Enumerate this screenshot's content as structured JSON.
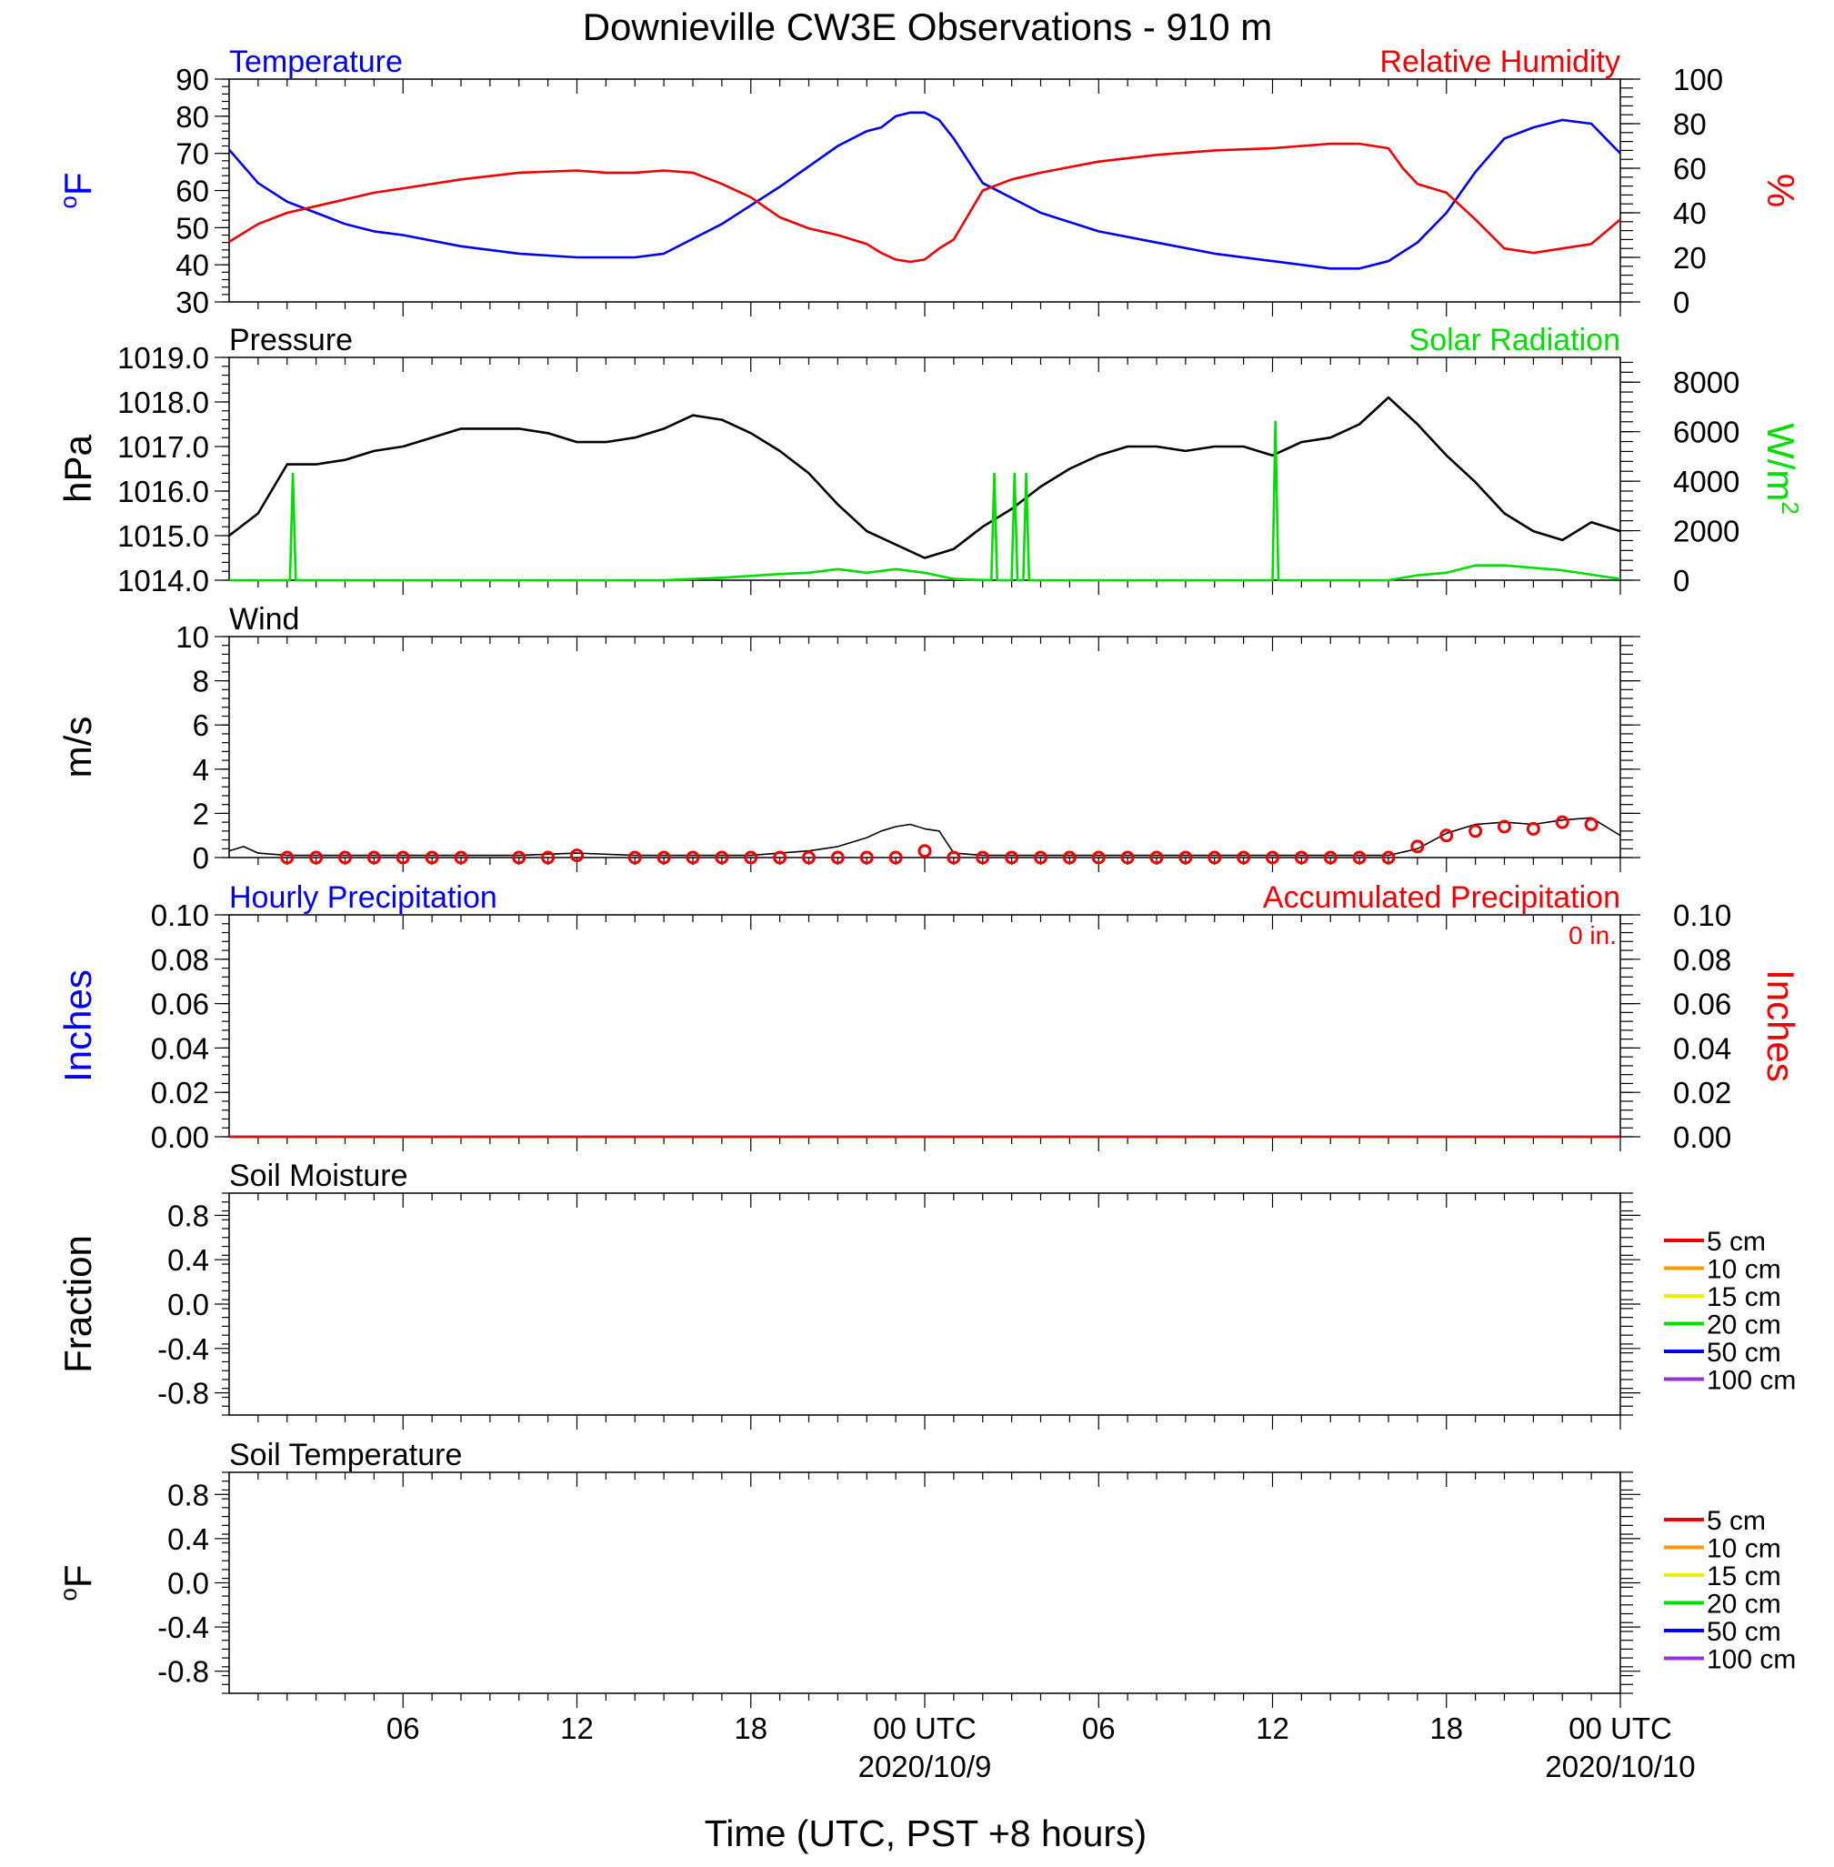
{
  "title": "Downieville CW3E Observations - 910 m",
  "x_axis": {
    "label": "Time (UTC, PST +8 hours)",
    "range_hours": [
      0,
      48
    ],
    "tick_hours": [
      6,
      12,
      18,
      24,
      30,
      36,
      42,
      48
    ],
    "tick_labels": [
      "06",
      "12",
      "18",
      "00 UTC",
      "06",
      "12",
      "18",
      "00 UTC"
    ],
    "date_labels": [
      {
        "hour": 24,
        "text": "2020/10/9"
      },
      {
        "hour": 48,
        "text": "2020/10/10"
      }
    ],
    "minor_step_hours": 1
  },
  "colors": {
    "blue": "#0000ee",
    "red": "#ee0000",
    "green": "#00dd00",
    "black": "#000000"
  },
  "chart_data": [
    {
      "id": "temp_rh",
      "type": "line",
      "left_title": "Temperature",
      "right_title": "Relative Humidity",
      "left_ylabel": "oF",
      "right_ylabel": "%",
      "left_ylim": [
        30,
        90
      ],
      "left_ticks": [
        30,
        40,
        50,
        60,
        70,
        80,
        90
      ],
      "right_ylim": [
        0,
        100
      ],
      "right_ticks": [
        0,
        20,
        40,
        60,
        80,
        100
      ],
      "series": [
        {
          "name": "Temperature",
          "axis": "left",
          "color": "#0000ee",
          "x": [
            0,
            1,
            2,
            3,
            4,
            5,
            6,
            8,
            10,
            12,
            13,
            14,
            15,
            17,
            19,
            21,
            22,
            22.5,
            23,
            23.5,
            24,
            24.5,
            25,
            26,
            28,
            30,
            32,
            34,
            36,
            38,
            38.5,
            39,
            40,
            41,
            42,
            43,
            44,
            45,
            46,
            47,
            48
          ],
          "y": [
            71,
            62,
            57,
            54,
            51,
            49,
            48,
            45,
            43,
            42,
            42,
            42,
            43,
            51,
            61,
            72,
            76,
            77,
            80,
            81,
            81,
            79,
            74,
            62,
            54,
            49,
            46,
            43,
            41,
            39,
            39,
            39,
            41,
            46,
            54,
            65,
            74,
            77,
            79,
            78,
            70
          ]
        },
        {
          "name": "Relative Humidity",
          "axis": "right",
          "color": "#ee0000",
          "x": [
            0,
            1,
            2,
            3,
            4,
            5,
            6,
            8,
            10,
            12,
            13,
            14,
            15,
            16,
            17,
            18,
            19,
            20,
            21,
            22,
            22.5,
            23,
            23.5,
            24,
            24.5,
            25,
            26,
            27,
            28,
            30,
            32,
            34,
            36,
            38,
            39,
            40,
            40.5,
            41,
            42,
            43,
            44,
            45,
            46,
            47,
            48
          ],
          "y": [
            27,
            35,
            40,
            43,
            46,
            49,
            51,
            55,
            58,
            59,
            58,
            58,
            59,
            58,
            53,
            47,
            38,
            33,
            30,
            26,
            22,
            19,
            18,
            19,
            24,
            28,
            50,
            55,
            58,
            63,
            66,
            68,
            69,
            71,
            71,
            69,
            60,
            53,
            49,
            37,
            24,
            22,
            24,
            26,
            37
          ]
        }
      ]
    },
    {
      "id": "pressure_solar",
      "type": "line",
      "left_title": "Pressure",
      "right_title": "Solar Radiation",
      "left_ylabel": "hPa",
      "right_ylabel": "W/m2",
      "left_ylim": [
        1014,
        1019
      ],
      "left_ticks": [
        1014,
        1015,
        1016,
        1017,
        1018,
        1019
      ],
      "left_tick_labels": [
        "1014.0",
        "1015.0",
        "1016.0",
        "1017.0",
        "1018.0",
        "1019.0"
      ],
      "right_ylim": [
        0,
        9000
      ],
      "right_ticks": [
        0,
        2000,
        4000,
        6000,
        8000
      ],
      "series": [
        {
          "name": "Pressure",
          "axis": "left",
          "color": "#000000",
          "x": [
            0,
            1,
            2,
            3,
            4,
            5,
            6,
            7,
            8,
            9,
            10,
            11,
            12,
            13,
            14,
            15,
            16,
            17,
            18,
            19,
            20,
            21,
            22,
            23,
            24,
            25,
            26,
            27,
            28,
            29,
            30,
            31,
            32,
            33,
            34,
            35,
            36,
            37,
            38,
            39,
            40,
            41,
            42,
            43,
            44,
            45,
            46,
            47,
            48
          ],
          "y": [
            1015.0,
            1015.5,
            1016.6,
            1016.6,
            1016.7,
            1016.9,
            1017.0,
            1017.2,
            1017.4,
            1017.4,
            1017.4,
            1017.3,
            1017.1,
            1017.1,
            1017.2,
            1017.4,
            1017.7,
            1017.6,
            1017.3,
            1016.9,
            1016.4,
            1015.7,
            1015.1,
            1014.8,
            1014.5,
            1014.7,
            1015.2,
            1015.6,
            1016.1,
            1016.5,
            1016.8,
            1017.0,
            1017.0,
            1016.9,
            1017.0,
            1017.0,
            1016.8,
            1017.1,
            1017.2,
            1017.5,
            1018.1,
            1017.5,
            1016.8,
            1016.2,
            1015.5,
            1015.1,
            1014.9,
            1015.3,
            1015.1
          ]
        },
        {
          "name": "Solar Radiation",
          "axis": "right",
          "color": "#00dd00",
          "x": [
            0,
            2.1,
            2.2,
            2.3,
            15,
            17,
            19,
            20,
            21,
            22,
            23,
            24,
            25,
            26.3,
            26.4,
            26.5,
            27,
            27.1,
            27.2,
            27.4,
            27.5,
            27.6,
            27.7,
            28,
            36,
            36.1,
            36.2,
            36.3,
            38,
            40,
            41,
            42,
            43,
            44,
            46,
            48
          ],
          "y": [
            0,
            0,
            4300,
            0,
            0,
            100,
            250,
            300,
            450,
            300,
            450,
            300,
            50,
            0,
            4300,
            0,
            0,
            4300,
            0,
            0,
            4300,
            0,
            0,
            0,
            0,
            6400,
            0,
            0,
            0,
            0,
            200,
            300,
            600,
            600,
            400,
            50
          ]
        }
      ]
    },
    {
      "id": "wind",
      "type": "line",
      "left_title": "Wind",
      "left_ylabel": "m/s",
      "left_ylim": [
        0,
        10
      ],
      "left_ticks": [
        0,
        2,
        4,
        6,
        8,
        10
      ],
      "series": [
        {
          "name": "Wind",
          "axis": "left",
          "color": "#000000",
          "x": [
            0,
            0.5,
            1,
            2,
            4,
            6,
            8,
            10,
            12,
            14,
            16,
            18,
            19,
            20,
            21,
            22,
            22.5,
            23,
            23.5,
            24,
            24.5,
            25,
            26,
            30,
            34,
            38,
            40,
            41,
            42,
            43,
            44,
            45,
            46,
            47,
            48
          ],
          "y": [
            0.3,
            0.5,
            0.2,
            0.1,
            0.1,
            0.1,
            0.1,
            0.1,
            0.2,
            0.1,
            0.1,
            0.1,
            0.2,
            0.3,
            0.5,
            0.9,
            1.2,
            1.4,
            1.5,
            1.3,
            1.2,
            0.2,
            0.1,
            0.1,
            0.1,
            0.1,
            0.1,
            0.4,
            1.1,
            1.5,
            1.6,
            1.5,
            1.7,
            1.8,
            1.0
          ]
        }
      ],
      "barbs": {
        "color": "#ee0000",
        "hours": [
          2,
          3,
          4,
          5,
          6,
          7,
          8,
          10,
          11,
          12,
          14,
          15,
          16,
          17,
          18,
          19,
          20,
          21,
          22,
          23,
          24,
          25,
          26,
          27,
          28,
          29,
          30,
          31,
          32,
          33,
          34,
          35,
          36,
          37,
          38,
          39,
          40,
          41,
          42,
          43,
          44,
          45,
          46,
          47
        ],
        "speeds": [
          0,
          0,
          0,
          0,
          0,
          0,
          0,
          0,
          0,
          0.1,
          0,
          0,
          0,
          0,
          0,
          0,
          0,
          0,
          0,
          0,
          0.3,
          0,
          0,
          0,
          0,
          0,
          0,
          0,
          0,
          0,
          0,
          0,
          0,
          0,
          0,
          0,
          0,
          0.5,
          1.0,
          1.2,
          1.4,
          1.3,
          1.6,
          1.5
        ]
      }
    },
    {
      "id": "precip",
      "type": "bar",
      "left_title": "Hourly Precipitation",
      "right_title": "Accumulated Precipitation",
      "annotation": "0 in.",
      "left_ylabel": "Inches",
      "right_ylabel": "Inches",
      "left_ylim": [
        0,
        0.1
      ],
      "left_ticks": [
        0,
        0.02,
        0.04,
        0.06,
        0.08,
        0.1
      ],
      "left_tick_labels": [
        "0.00",
        "0.02",
        "0.04",
        "0.06",
        "0.08",
        "0.10"
      ],
      "right_ylim": [
        0,
        0.1
      ],
      "right_ticks": [
        0,
        0.02,
        0.04,
        0.06,
        0.08,
        0.1
      ],
      "right_tick_labels": [
        "0.00",
        "0.02",
        "0.04",
        "0.06",
        "0.08",
        "0.10"
      ],
      "series": [
        {
          "name": "Hourly Precipitation",
          "axis": "left",
          "color": "#0000ee",
          "x": [
            0,
            48
          ],
          "y": [
            0,
            0
          ]
        },
        {
          "name": "Accumulated Precipitation",
          "axis": "right",
          "color": "#ee0000",
          "x": [
            0,
            48
          ],
          "y": [
            0,
            0
          ]
        }
      ]
    },
    {
      "id": "soil_moisture",
      "type": "line",
      "left_title": "Soil Moisture",
      "left_ylabel": "Fraction",
      "left_ylim": [
        -1,
        1
      ],
      "left_ticks": [
        -0.8,
        -0.4,
        0.0,
        0.4,
        0.8
      ],
      "left_tick_labels": [
        "-0.8",
        "-0.4",
        "0.0",
        "0.4",
        "0.8"
      ],
      "legend": [
        {
          "label": "5 cm",
          "color": "#ee0000"
        },
        {
          "label": "10 cm",
          "color": "#ff9900"
        },
        {
          "label": "15 cm",
          "color": "#eeee00"
        },
        {
          "label": "20 cm",
          "color": "#00dd00"
        },
        {
          "label": "50 cm",
          "color": "#0000ee"
        },
        {
          "label": "100 cm",
          "color": "#9933cc"
        }
      ]
    },
    {
      "id": "soil_temperature",
      "type": "line",
      "left_title": "Soil Temperature",
      "left_ylabel": "oF",
      "left_ylim": [
        -1,
        1
      ],
      "left_ticks": [
        -0.8,
        -0.4,
        0.0,
        0.4,
        0.8
      ],
      "left_tick_labels": [
        "-0.8",
        "-0.4",
        "0.0",
        "0.4",
        "0.8"
      ],
      "legend": [
        {
          "label": "5 cm",
          "color": "#ee0000"
        },
        {
          "label": "10 cm",
          "color": "#ff9900"
        },
        {
          "label": "15 cm",
          "color": "#eeee00"
        },
        {
          "label": "20 cm",
          "color": "#00dd00"
        },
        {
          "label": "50 cm",
          "color": "#0000ee"
        },
        {
          "label": "100 cm",
          "color": "#9933cc"
        }
      ]
    }
  ]
}
